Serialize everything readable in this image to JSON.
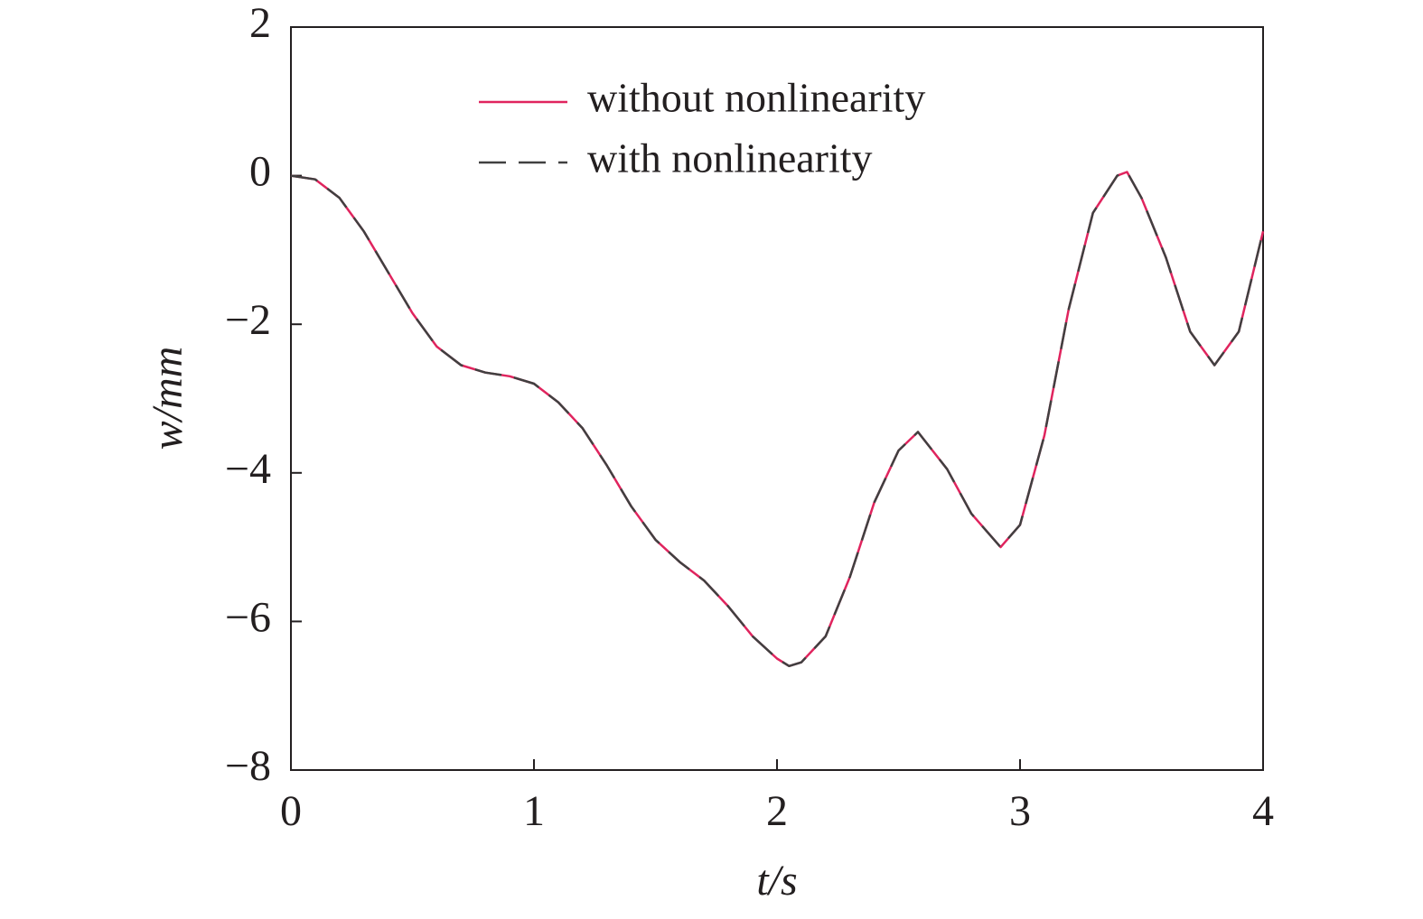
{
  "chart_data": {
    "type": "line",
    "x_label": "t/s",
    "y_label": "w/mm",
    "xlim": [
      0,
      4
    ],
    "ylim": [
      -8,
      2
    ],
    "xticks": [
      0,
      1,
      2,
      3,
      4
    ],
    "yticks": [
      2,
      0,
      {
        "value": -2,
        "label": "−2"
      },
      {
        "value": -4,
        "label": "−4"
      },
      {
        "value": -6,
        "label": "−6"
      },
      {
        "value": -8,
        "label": "−8"
      }
    ],
    "x": [
      0,
      0.1,
      0.2,
      0.3,
      0.4,
      0.5,
      0.6,
      0.7,
      0.8,
      0.9,
      1.0,
      1.1,
      1.2,
      1.3,
      1.4,
      1.5,
      1.6,
      1.7,
      1.8,
      1.9,
      2.0,
      2.05,
      2.1,
      2.2,
      2.3,
      2.4,
      2.5,
      2.58,
      2.7,
      2.8,
      2.92,
      3.0,
      3.1,
      3.2,
      3.3,
      3.4,
      3.44,
      3.5,
      3.6,
      3.7,
      3.8,
      3.9,
      4.0
    ],
    "series": [
      {
        "name": "without nonlinearity",
        "color": "#e0245e",
        "dash": false,
        "values": [
          0,
          -0.05,
          -0.3,
          -0.75,
          -1.3,
          -1.85,
          -2.3,
          -2.55,
          -2.65,
          -2.7,
          -2.8,
          -3.05,
          -3.4,
          -3.9,
          -4.45,
          -4.9,
          -5.2,
          -5.45,
          -5.8,
          -6.2,
          -6.5,
          -6.6,
          -6.55,
          -6.2,
          -5.4,
          -4.4,
          -3.7,
          -3.45,
          -3.95,
          -4.55,
          -5.0,
          -4.7,
          -3.5,
          -1.8,
          -0.5,
          0.0,
          0.05,
          -0.3,
          -1.1,
          -2.1,
          -2.55,
          -2.1,
          -0.75
        ]
      },
      {
        "name": "with nonlinearity",
        "color": "#404040",
        "dash": true,
        "values": [
          0,
          -0.05,
          -0.3,
          -0.75,
          -1.3,
          -1.85,
          -2.3,
          -2.55,
          -2.65,
          -2.7,
          -2.8,
          -3.05,
          -3.4,
          -3.9,
          -4.45,
          -4.9,
          -5.2,
          -5.45,
          -5.8,
          -6.2,
          -6.5,
          -6.6,
          -6.55,
          -6.2,
          -5.4,
          -4.4,
          -3.7,
          -3.45,
          -3.95,
          -4.55,
          -5.0,
          -4.7,
          -3.5,
          -1.8,
          -0.5,
          0.0,
          0.05,
          -0.3,
          -1.1,
          -2.1,
          -2.55,
          -2.1,
          -0.75
        ]
      }
    ],
    "legend": "upper center"
  }
}
